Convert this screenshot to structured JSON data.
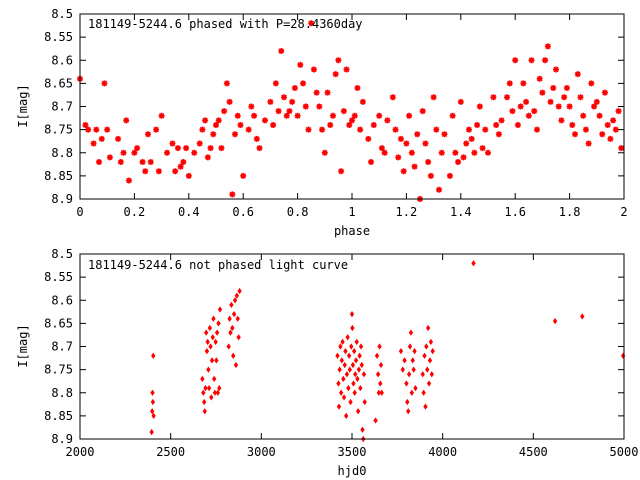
{
  "chart_data": [
    {
      "type": "scatter",
      "title": "181149-5244.6 phased with P=28.4360day",
      "xlabel": "phase",
      "ylabel": "I[mag]",
      "xlim": [
        0,
        2
      ],
      "ylim": [
        8.9,
        8.5
      ],
      "y_inverted": true,
      "grid": false,
      "marker": "star",
      "color": "#ff0000",
      "xticks": [
        {
          "value": 0,
          "label": "0"
        },
        {
          "value": 0.2,
          "label": "0.2"
        },
        {
          "value": 0.4,
          "label": "0.4"
        },
        {
          "value": 0.6,
          "label": "0.6"
        },
        {
          "value": 0.8,
          "label": "0.8"
        },
        {
          "value": 1.0,
          "label": "1"
        },
        {
          "value": 1.2,
          "label": "1.2"
        },
        {
          "value": 1.4,
          "label": "1.4"
        },
        {
          "value": 1.6,
          "label": "1.6"
        },
        {
          "value": 1.8,
          "label": "1.8"
        },
        {
          "value": 2.0,
          "label": "2"
        }
      ],
      "yticks": [
        {
          "value": 8.5,
          "label": "8.5"
        },
        {
          "value": 8.55,
          "label": "8.55"
        },
        {
          "value": 8.6,
          "label": "8.6"
        },
        {
          "value": 8.65,
          "label": "8.65"
        },
        {
          "value": 8.7,
          "label": "8.7"
        },
        {
          "value": 8.75,
          "label": "8.75"
        },
        {
          "value": 8.8,
          "label": "8.8"
        },
        {
          "value": 8.85,
          "label": "8.85"
        },
        {
          "value": 8.9,
          "label": "8.9"
        }
      ],
      "points": [
        [
          0.0,
          8.64
        ],
        [
          0.02,
          8.74
        ],
        [
          0.03,
          8.75
        ],
        [
          0.05,
          8.78
        ],
        [
          0.06,
          8.75
        ],
        [
          0.07,
          8.82
        ],
        [
          0.08,
          8.77
        ],
        [
          0.09,
          8.65
        ],
        [
          0.1,
          8.75
        ],
        [
          0.11,
          8.81
        ],
        [
          0.14,
          8.77
        ],
        [
          0.15,
          8.82
        ],
        [
          0.16,
          8.8
        ],
        [
          0.17,
          8.73
        ],
        [
          0.18,
          8.86
        ],
        [
          0.2,
          8.8
        ],
        [
          0.21,
          8.79
        ],
        [
          0.23,
          8.82
        ],
        [
          0.24,
          8.84
        ],
        [
          0.25,
          8.76
        ],
        [
          0.26,
          8.82
        ],
        [
          0.28,
          8.75
        ],
        [
          0.29,
          8.84
        ],
        [
          0.3,
          8.72
        ],
        [
          0.32,
          8.8
        ],
        [
          0.34,
          8.78
        ],
        [
          0.35,
          8.84
        ],
        [
          0.36,
          8.79
        ],
        [
          0.37,
          8.83
        ],
        [
          0.38,
          8.82
        ],
        [
          0.39,
          8.79
        ],
        [
          0.4,
          8.85
        ],
        [
          0.42,
          8.8
        ],
        [
          0.44,
          8.78
        ],
        [
          0.45,
          8.75
        ],
        [
          0.46,
          8.73
        ],
        [
          0.47,
          8.81
        ],
        [
          0.48,
          8.79
        ],
        [
          0.49,
          8.76
        ],
        [
          0.5,
          8.74
        ],
        [
          0.51,
          8.73
        ],
        [
          0.52,
          8.79
        ],
        [
          0.53,
          8.71
        ],
        [
          0.54,
          8.65
        ],
        [
          0.55,
          8.69
        ],
        [
          0.56,
          8.89
        ],
        [
          0.57,
          8.76
        ],
        [
          0.58,
          8.72
        ],
        [
          0.59,
          8.74
        ],
        [
          0.6,
          8.85
        ],
        [
          0.62,
          8.75
        ],
        [
          0.63,
          8.7
        ],
        [
          0.64,
          8.72
        ],
        [
          0.65,
          8.77
        ],
        [
          0.66,
          8.79
        ],
        [
          0.68,
          8.73
        ],
        [
          0.7,
          8.69
        ],
        [
          0.71,
          8.74
        ],
        [
          0.72,
          8.65
        ],
        [
          0.73,
          8.71
        ],
        [
          0.74,
          8.58
        ],
        [
          0.75,
          8.68
        ],
        [
          0.76,
          8.72
        ],
        [
          0.77,
          8.71
        ],
        [
          0.78,
          8.69
        ],
        [
          0.79,
          8.66
        ],
        [
          0.8,
          8.72
        ],
        [
          0.81,
          8.61
        ],
        [
          0.82,
          8.65
        ],
        [
          0.83,
          8.7
        ],
        [
          0.84,
          8.75
        ],
        [
          0.85,
          8.52
        ],
        [
          0.86,
          8.62
        ],
        [
          0.87,
          8.67
        ],
        [
          0.88,
          8.7
        ],
        [
          0.89,
          8.75
        ],
        [
          0.9,
          8.8
        ],
        [
          0.91,
          8.67
        ],
        [
          0.92,
          8.74
        ],
        [
          0.93,
          8.72
        ],
        [
          0.94,
          8.63
        ],
        [
          0.95,
          8.6
        ],
        [
          0.96,
          8.84
        ],
        [
          0.97,
          8.71
        ],
        [
          0.98,
          8.62
        ],
        [
          0.99,
          8.74
        ],
        [
          1.0,
          8.73
        ],
        [
          1.01,
          8.72
        ],
        [
          1.02,
          8.66
        ],
        [
          1.03,
          8.75
        ],
        [
          1.04,
          8.69
        ],
        [
          1.06,
          8.77
        ],
        [
          1.07,
          8.82
        ],
        [
          1.08,
          8.74
        ],
        [
          1.1,
          8.72
        ],
        [
          1.11,
          8.79
        ],
        [
          1.12,
          8.8
        ],
        [
          1.13,
          8.73
        ],
        [
          1.15,
          8.68
        ],
        [
          1.16,
          8.75
        ],
        [
          1.17,
          8.81
        ],
        [
          1.18,
          8.77
        ],
        [
          1.19,
          8.84
        ],
        [
          1.2,
          8.78
        ],
        [
          1.21,
          8.72
        ],
        [
          1.22,
          8.8
        ],
        [
          1.23,
          8.83
        ],
        [
          1.24,
          8.76
        ],
        [
          1.25,
          8.9
        ],
        [
          1.26,
          8.71
        ],
        [
          1.27,
          8.78
        ],
        [
          1.28,
          8.82
        ],
        [
          1.29,
          8.85
        ],
        [
          1.3,
          8.68
        ],
        [
          1.31,
          8.75
        ],
        [
          1.32,
          8.88
        ],
        [
          1.33,
          8.8
        ],
        [
          1.34,
          8.76
        ],
        [
          1.36,
          8.85
        ],
        [
          1.37,
          8.72
        ],
        [
          1.38,
          8.8
        ],
        [
          1.39,
          8.82
        ],
        [
          1.4,
          8.69
        ],
        [
          1.41,
          8.81
        ],
        [
          1.42,
          8.78
        ],
        [
          1.43,
          8.75
        ],
        [
          1.44,
          8.77
        ],
        [
          1.45,
          8.8
        ],
        [
          1.46,
          8.74
        ],
        [
          1.47,
          8.7
        ],
        [
          1.48,
          8.79
        ],
        [
          1.49,
          8.75
        ],
        [
          1.5,
          8.8
        ],
        [
          1.52,
          8.68
        ],
        [
          1.53,
          8.74
        ],
        [
          1.54,
          8.76
        ],
        [
          1.55,
          8.73
        ],
        [
          1.57,
          8.68
        ],
        [
          1.58,
          8.65
        ],
        [
          1.59,
          8.71
        ],
        [
          1.6,
          8.6
        ],
        [
          1.61,
          8.74
        ],
        [
          1.62,
          8.7
        ],
        [
          1.63,
          8.65
        ],
        [
          1.64,
          8.69
        ],
        [
          1.65,
          8.72
        ],
        [
          1.66,
          8.6
        ],
        [
          1.67,
          8.71
        ],
        [
          1.68,
          8.75
        ],
        [
          1.69,
          8.64
        ],
        [
          1.7,
          8.67
        ],
        [
          1.71,
          8.6
        ],
        [
          1.72,
          8.57
        ],
        [
          1.73,
          8.69
        ],
        [
          1.74,
          8.66
        ],
        [
          1.75,
          8.62
        ],
        [
          1.76,
          8.7
        ],
        [
          1.77,
          8.73
        ],
        [
          1.78,
          8.68
        ],
        [
          1.79,
          8.66
        ],
        [
          1.8,
          8.7
        ],
        [
          1.81,
          8.74
        ],
        [
          1.82,
          8.76
        ],
        [
          1.83,
          8.63
        ],
        [
          1.84,
          8.68
        ],
        [
          1.85,
          8.72
        ],
        [
          1.86,
          8.75
        ],
        [
          1.87,
          8.78
        ],
        [
          1.88,
          8.65
        ],
        [
          1.89,
          8.7
        ],
        [
          1.9,
          8.69
        ],
        [
          1.91,
          8.72
        ],
        [
          1.92,
          8.76
        ],
        [
          1.93,
          8.67
        ],
        [
          1.94,
          8.74
        ],
        [
          1.95,
          8.77
        ],
        [
          1.96,
          8.73
        ],
        [
          1.97,
          8.75
        ],
        [
          1.98,
          8.71
        ],
        [
          1.99,
          8.79
        ]
      ]
    },
    {
      "type": "scatter",
      "title": "181149-5244.6 not phased light curve",
      "xlabel": "hjd0",
      "ylabel": "I[mag]",
      "xlim": [
        2000,
        5000
      ],
      "ylim": [
        8.9,
        8.5
      ],
      "y_inverted": true,
      "grid": false,
      "marker": "diamond",
      "color": "#ff0000",
      "xticks": [
        {
          "value": 2000,
          "label": "2000"
        },
        {
          "value": 2500,
          "label": "2500"
        },
        {
          "value": 3000,
          "label": "3000"
        },
        {
          "value": 3500,
          "label": "3500"
        },
        {
          "value": 4000,
          "label": "4000"
        },
        {
          "value": 4500,
          "label": "4500"
        },
        {
          "value": 5000,
          "label": "5000"
        }
      ],
      "yticks": [
        {
          "value": 8.5,
          "label": "8.5"
        },
        {
          "value": 8.55,
          "label": "8.55"
        },
        {
          "value": 8.6,
          "label": "8.6"
        },
        {
          "value": 8.65,
          "label": "8.65"
        },
        {
          "value": 8.7,
          "label": "8.7"
        },
        {
          "value": 8.75,
          "label": "8.75"
        },
        {
          "value": 8.8,
          "label": "8.8"
        },
        {
          "value": 8.85,
          "label": "8.85"
        },
        {
          "value": 8.9,
          "label": "8.9"
        }
      ],
      "points": [
        [
          2395,
          8.885
        ],
        [
          2398,
          8.84
        ],
        [
          2400,
          8.8
        ],
        [
          2402,
          8.82
        ],
        [
          2404,
          8.72
        ],
        [
          2406,
          8.85
        ],
        [
          2675,
          8.77
        ],
        [
          2680,
          8.8
        ],
        [
          2685,
          8.82
        ],
        [
          2688,
          8.84
        ],
        [
          2692,
          8.79
        ],
        [
          2696,
          8.67
        ],
        [
          2700,
          8.71
        ],
        [
          2704,
          8.69
        ],
        [
          2708,
          8.75
        ],
        [
          2712,
          8.79
        ],
        [
          2716,
          8.66
        ],
        [
          2720,
          8.7
        ],
        [
          2724,
          8.81
        ],
        [
          2728,
          8.73
        ],
        [
          2732,
          8.68
        ],
        [
          2736,
          8.64
        ],
        [
          2740,
          8.77
        ],
        [
          2744,
          8.8
        ],
        [
          2748,
          8.69
        ],
        [
          2752,
          8.73
        ],
        [
          2756,
          8.67
        ],
        [
          2760,
          8.8
        ],
        [
          2764,
          8.65
        ],
        [
          2768,
          8.79
        ],
        [
          2772,
          8.62
        ],
        [
          2820,
          8.7
        ],
        [
          2825,
          8.64
        ],
        [
          2830,
          8.67
        ],
        [
          2835,
          8.61
        ],
        [
          2840,
          8.66
        ],
        [
          2845,
          8.72
        ],
        [
          2850,
          8.63
        ],
        [
          2855,
          8.6
        ],
        [
          2860,
          8.74
        ],
        [
          2865,
          8.59
        ],
        [
          2870,
          8.64
        ],
        [
          2875,
          8.68
        ],
        [
          2880,
          8.58
        ],
        [
          3420,
          8.72
        ],
        [
          3425,
          8.78
        ],
        [
          3428,
          8.83
        ],
        [
          3432,
          8.75
        ],
        [
          3436,
          8.7
        ],
        [
          3440,
          8.8
        ],
        [
          3444,
          8.73
        ],
        [
          3448,
          8.69
        ],
        [
          3452,
          8.77
        ],
        [
          3456,
          8.81
        ],
        [
          3460,
          8.74
        ],
        [
          3464,
          8.71
        ],
        [
          3468,
          8.85
        ],
        [
          3472,
          8.76
        ],
        [
          3476,
          8.68
        ],
        [
          3480,
          8.79
        ],
        [
          3484,
          8.72
        ],
        [
          3488,
          8.75
        ],
        [
          3492,
          8.82
        ],
        [
          3496,
          8.7
        ],
        [
          3500,
          8.63
        ],
        [
          3502,
          8.66
        ],
        [
          3505,
          8.74
        ],
        [
          3508,
          8.78
        ],
        [
          3512,
          8.71
        ],
        [
          3515,
          8.8
        ],
        [
          3518,
          8.76
        ],
        [
          3522,
          8.73
        ],
        [
          3526,
          8.69
        ],
        [
          3530,
          8.77
        ],
        [
          3534,
          8.84
        ],
        [
          3538,
          8.75
        ],
        [
          3542,
          8.72
        ],
        [
          3546,
          8.79
        ],
        [
          3550,
          8.7
        ],
        [
          3554,
          8.74
        ],
        [
          3558,
          8.88
        ],
        [
          3562,
          8.9
        ],
        [
          3566,
          8.76
        ],
        [
          3570,
          8.82
        ],
        [
          3630,
          8.86
        ],
        [
          3638,
          8.72
        ],
        [
          3644,
          8.76
        ],
        [
          3648,
          8.8
        ],
        [
          3652,
          8.7
        ],
        [
          3656,
          8.78
        ],
        [
          3660,
          8.74
        ],
        [
          3664,
          8.8
        ],
        [
          3770,
          8.71
        ],
        [
          3780,
          8.75
        ],
        [
          3790,
          8.73
        ],
        [
          3800,
          8.78
        ],
        [
          3805,
          8.82
        ],
        [
          3810,
          8.84
        ],
        [
          3815,
          8.76
        ],
        [
          3820,
          8.7
        ],
        [
          3825,
          8.67
        ],
        [
          3830,
          8.8
        ],
        [
          3835,
          8.73
        ],
        [
          3840,
          8.75
        ],
        [
          3845,
          8.71
        ],
        [
          3850,
          8.79
        ],
        [
          3890,
          8.76
        ],
        [
          3895,
          8.8
        ],
        [
          3900,
          8.72
        ],
        [
          3905,
          8.83
        ],
        [
          3910,
          8.7
        ],
        [
          3915,
          8.75
        ],
        [
          3920,
          8.66
        ],
        [
          3925,
          8.78
        ],
        [
          3930,
          8.73
        ],
        [
          3935,
          8.69
        ],
        [
          3940,
          8.76
        ],
        [
          3945,
          8.71
        ],
        [
          4170,
          8.52
        ],
        [
          4620,
          8.645
        ],
        [
          4770,
          8.635
        ],
        [
          4995,
          8.72
        ]
      ]
    }
  ]
}
